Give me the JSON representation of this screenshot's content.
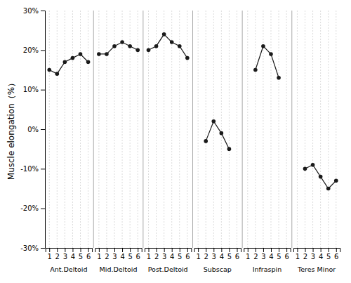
{
  "chart_data": {
    "type": "line",
    "categories": [
      "1",
      "2",
      "3",
      "4",
      "5",
      "6"
    ],
    "series": [
      {
        "name": "Ant.Deltoid",
        "values": [
          15,
          14,
          17,
          18,
          19,
          17
        ]
      },
      {
        "name": "Mid.Deltoid",
        "values": [
          19,
          19,
          21,
          22,
          21,
          20
        ]
      },
      {
        "name": "Post.Deltoid",
        "values": [
          20,
          21,
          24,
          22,
          21,
          18
        ]
      },
      {
        "name": "Subscap",
        "values": [
          null,
          -3,
          2,
          -1,
          -5,
          null
        ]
      },
      {
        "name": "Infraspin",
        "values": [
          null,
          15,
          21,
          19,
          13,
          null
        ]
      },
      {
        "name": "Teres Minor",
        "values": [
          null,
          -10,
          -9,
          -12,
          -15,
          -13
        ]
      }
    ],
    "y_label": "Muscle elongation（%）",
    "ylim": [
      -30,
      30
    ],
    "yticks": [
      {
        "value": -30,
        "label": "-30%"
      },
      {
        "value": -20,
        "label": "-20%"
      },
      {
        "value": -10,
        "label": "-10%"
      },
      {
        "value": 0,
        "label": "0%"
      },
      {
        "value": 10,
        "label": "10%"
      },
      {
        "value": 20,
        "label": "20%"
      },
      {
        "value": 30,
        "label": "30%"
      }
    ],
    "color": "#1a1a1a",
    "marker": "circle",
    "grid": true
  }
}
